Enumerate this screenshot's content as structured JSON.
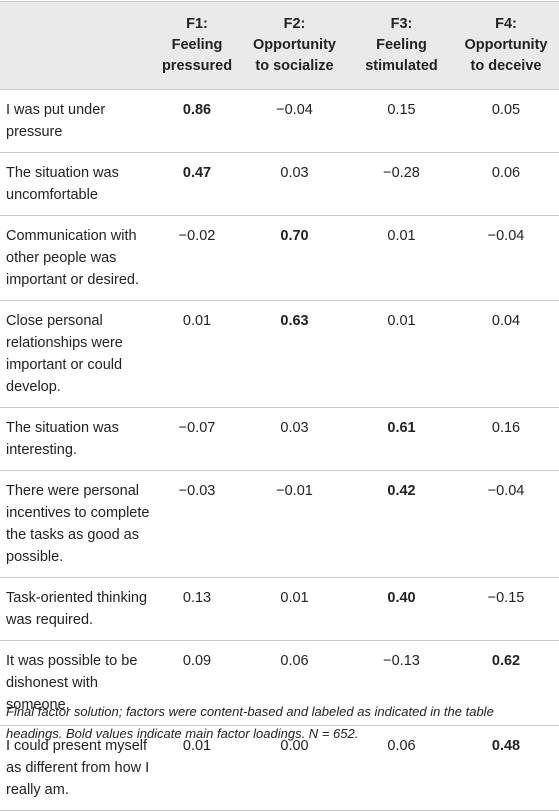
{
  "table": {
    "headers": [
      {
        "lines": [
          "",
          ""
        ]
      },
      {
        "lines": [
          "F1:",
          "Feeling",
          "pressured"
        ]
      },
      {
        "lines": [
          "F2:",
          "Opportunity",
          "to socialize"
        ]
      },
      {
        "lines": [
          "F3:",
          "Feeling",
          "stimulated"
        ]
      },
      {
        "lines": [
          "F4:",
          "Opportunity",
          "to deceive"
        ]
      }
    ],
    "rows": [
      {
        "item": "I was put under pressure",
        "values": [
          "0.86",
          "−0.04",
          "0.15",
          "0.05"
        ],
        "bold": [
          true,
          false,
          false,
          false
        ]
      },
      {
        "item": "The situation was uncomfortable",
        "values": [
          "0.47",
          "0.03",
          "−0.28",
          "0.06"
        ],
        "bold": [
          true,
          false,
          false,
          false
        ]
      },
      {
        "item": "Communication with other people was important or desired.",
        "values": [
          "−0.02",
          "0.70",
          "0.01",
          "−0.04"
        ],
        "bold": [
          false,
          true,
          false,
          false
        ]
      },
      {
        "item": "Close personal relationships were important or could develop.",
        "values": [
          "0.01",
          "0.63",
          "0.01",
          "0.04"
        ],
        "bold": [
          false,
          true,
          false,
          false
        ]
      },
      {
        "item": "The situation was interesting.",
        "values": [
          "−0.07",
          "0.03",
          "0.61",
          "0.16"
        ],
        "bold": [
          false,
          false,
          true,
          false
        ]
      },
      {
        "item": "There were personal incentives to complete the tasks as good as possible.",
        "values": [
          "−0.03",
          "−0.01",
          "0.42",
          "−0.04"
        ],
        "bold": [
          false,
          false,
          true,
          false
        ]
      },
      {
        "item": "Task-oriented thinking was required.",
        "values": [
          "0.13",
          "0.01",
          "0.40",
          "−0.15"
        ],
        "bold": [
          false,
          false,
          true,
          false
        ]
      },
      {
        "item": "It was possible to be dishonest with someone.",
        "values": [
          "0.09",
          "0.06",
          "−0.13",
          "0.62"
        ],
        "bold": [
          false,
          false,
          false,
          true
        ]
      },
      {
        "item": "I could present myself as different from how I really am.",
        "values": [
          "0.01",
          "0.00",
          "0.06",
          "0.48"
        ],
        "bold": [
          false,
          false,
          false,
          true
        ]
      }
    ]
  },
  "note": {
    "text_before": "Final factor solution; factors were content-based and labeled as indicated in the table headings. Bold values indicate main factor loadings. ",
    "n_label": "N",
    "n_text": " = 652."
  }
}
